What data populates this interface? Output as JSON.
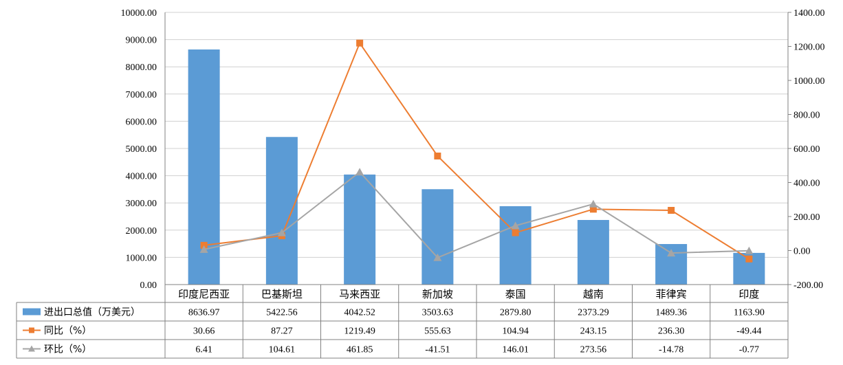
{
  "chart_data": {
    "type": "bar",
    "categories": [
      "印度尼西亚",
      "巴基斯坦",
      "马来西亚",
      "新加坡",
      "泰国",
      "越南",
      "菲律宾",
      "印度"
    ],
    "series": [
      {
        "name": "进出口总值（万美元）",
        "type": "bar",
        "axis": "left",
        "color": "#5B9BD5",
        "values": [
          8636.97,
          5422.56,
          4042.52,
          3503.63,
          2879.8,
          2373.29,
          1489.36,
          1163.9
        ],
        "display": [
          "8636.97",
          "5422.56",
          "4042.52",
          "3503.63",
          "2879.80",
          "2373.29",
          "1489.36",
          "1163.90"
        ]
      },
      {
        "name": "同比（%）",
        "type": "line",
        "axis": "right",
        "marker": "square",
        "color": "#ED7D31",
        "values": [
          30.66,
          87.27,
          1219.49,
          555.63,
          104.94,
          243.15,
          236.3,
          -49.44
        ],
        "display": [
          "30.66",
          "87.27",
          "1219.49",
          "555.63",
          "104.94",
          "243.15",
          "236.30",
          "-49.44"
        ]
      },
      {
        "name": "环比（%）",
        "type": "line",
        "axis": "right",
        "marker": "triangle",
        "color": "#A5A5A5",
        "values": [
          6.41,
          104.61,
          461.85,
          -41.51,
          146.01,
          273.56,
          -14.78,
          -0.77
        ],
        "display": [
          "6.41",
          "104.61",
          "461.85",
          "-41.51",
          "146.01",
          "273.56",
          "-14.78",
          "-0.77"
        ]
      }
    ],
    "y_left": {
      "min": 0,
      "max": 10000,
      "ticks": [
        "0.00",
        "1000.00",
        "2000.00",
        "3000.00",
        "4000.00",
        "5000.00",
        "6000.00",
        "7000.00",
        "8000.00",
        "9000.00",
        "10000.00"
      ]
    },
    "y_right": {
      "min": -200,
      "max": 1400,
      "ticks": [
        "-200.00",
        "0.00",
        "200.00",
        "400.00",
        "600.00",
        "800.00",
        "1000.00",
        "1200.00",
        "1400.00"
      ]
    },
    "grid": true,
    "legend": "data-table-left"
  }
}
